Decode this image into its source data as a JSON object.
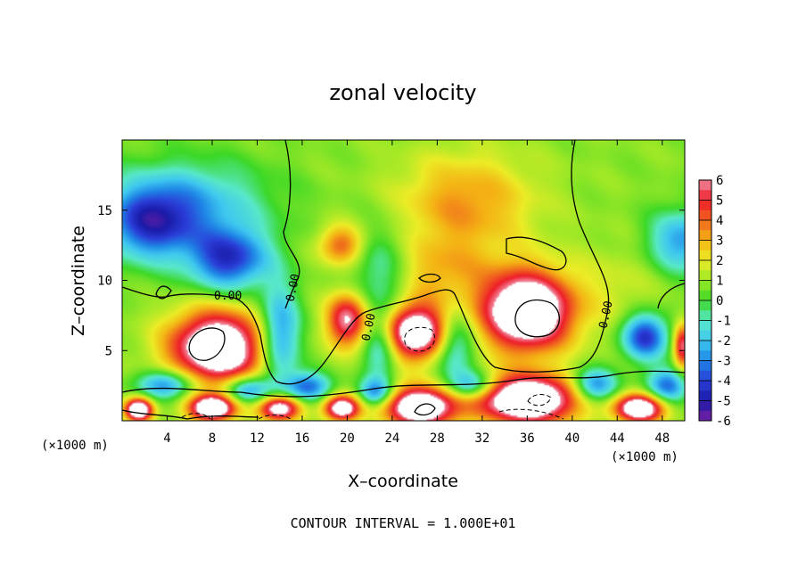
{
  "chart_data": {
    "type": "heatmap",
    "title": "zonal velocity",
    "xlabel": "X–coordinate",
    "ylabel": "Z–coordinate",
    "x_unit": "(×1000 m)",
    "xlim": [
      0,
      50
    ],
    "ylim": [
      0,
      20
    ],
    "x_ticks": [
      4,
      8,
      12,
      16,
      20,
      24,
      28,
      32,
      36,
      40,
      44,
      48
    ],
    "y_ticks": [
      5,
      10,
      15
    ],
    "colorbar_ticks": [
      6,
      5,
      4,
      3,
      2,
      1,
      0,
      -1,
      -2,
      -3,
      -4,
      -5,
      -6
    ],
    "colorbar_range": [
      -6,
      6
    ],
    "colormap": [
      "#7a1fa2",
      "#1a1aa8",
      "#2a3ed8",
      "#1f86e6",
      "#3ec8f0",
      "#58e8c8",
      "#3cd826",
      "#9ce826",
      "#ecec26",
      "#f4b414",
      "#f0641e",
      "#ee1c2a",
      "#f08ca0",
      "#ffffff"
    ],
    "contour_label": "0.00",
    "contour_interval_text": "CONTOUR INTERVAL = 1.000E+01",
    "features": [
      {
        "x": 8.5,
        "z": 5.2,
        "value": 8.0,
        "rx": 4.2,
        "rz": 2.6
      },
      {
        "x": 20.0,
        "z": 7.2,
        "value": 5.5,
        "rx": 1.8,
        "rz": 1.9
      },
      {
        "x": 19.5,
        "z": 12.5,
        "value": 3.4,
        "rx": 2.0,
        "rz": 1.4
      },
      {
        "x": 26.0,
        "z": 6.3,
        "value": 7.5,
        "rx": 3.2,
        "rz": 2.0
      },
      {
        "x": 36.0,
        "z": 7.8,
        "value": 8.5,
        "rx": 4.0,
        "rz": 2.8
      },
      {
        "x": 30.5,
        "z": 15.5,
        "value": 2.6,
        "rx": 6.0,
        "rz": 3.5
      },
      {
        "x": 28.0,
        "z": 10.5,
        "value": 2.0,
        "rx": 5.0,
        "rz": 2.5
      },
      {
        "x": 49.8,
        "z": 5.3,
        "value": 5.0,
        "rx": 0.8,
        "rz": 1.6
      },
      {
        "x": 23.0,
        "z": 10.5,
        "value": -2.2,
        "rx": 2.8,
        "rz": 3.4
      },
      {
        "x": 2.5,
        "z": 14.0,
        "value": -4.2,
        "rx": 4.0,
        "rz": 2.6
      },
      {
        "x": 9.5,
        "z": 11.5,
        "value": -5.0,
        "rx": 3.5,
        "rz": 2.2
      },
      {
        "x": 6.0,
        "z": 15.5,
        "value": -2.8,
        "rx": 7.0,
        "rz": 3.0
      },
      {
        "x": 14.0,
        "z": 6.0,
        "value": -4.2,
        "rx": 1.8,
        "rz": 3.5
      },
      {
        "x": 23.0,
        "z": 5.5,
        "value": -3.5,
        "rx": 1.6,
        "rz": 2.5
      },
      {
        "x": 29.5,
        "z": 5.5,
        "value": -3.5,
        "rx": 1.8,
        "rz": 2.5
      },
      {
        "x": 46.5,
        "z": 6.0,
        "value": -5.2,
        "rx": 2.0,
        "rz": 1.6
      },
      {
        "x": 49.8,
        "z": 12.8,
        "value": -3.5,
        "rx": 3.0,
        "rz": 2.2
      },
      {
        "x": 44.0,
        "z": 9.5,
        "value": 0.8,
        "rx": 4.0,
        "rz": 3.0
      },
      {
        "x": 1.5,
        "z": 0.8,
        "value": 8.0,
        "rx": 1.2,
        "rz": 0.8
      },
      {
        "x": 8.0,
        "z": 0.9,
        "value": 8.0,
        "rx": 2.0,
        "rz": 0.9
      },
      {
        "x": 14.0,
        "z": 0.9,
        "value": 7.0,
        "rx": 1.8,
        "rz": 0.9
      },
      {
        "x": 19.5,
        "z": 0.9,
        "value": 7.0,
        "rx": 1.6,
        "rz": 0.9
      },
      {
        "x": 26.5,
        "z": 1.0,
        "value": 8.0,
        "rx": 3.2,
        "rz": 1.4
      },
      {
        "x": 36.0,
        "z": 1.5,
        "value": 8.5,
        "rx": 4.5,
        "rz": 1.7
      },
      {
        "x": 46.0,
        "z": 0.9,
        "value": 7.5,
        "rx": 2.2,
        "rz": 1.0
      },
      {
        "x": 4.0,
        "z": 2.6,
        "value": -4.2,
        "rx": 2.5,
        "rz": 1.0
      },
      {
        "x": 11.0,
        "z": 2.2,
        "value": -4.2,
        "rx": 2.0,
        "rz": 1.0
      },
      {
        "x": 16.5,
        "z": 2.4,
        "value": -4.2,
        "rx": 2.0,
        "rz": 1.0
      },
      {
        "x": 22.5,
        "z": 2.0,
        "value": -3.8,
        "rx": 1.5,
        "rz": 1.0
      },
      {
        "x": 31.0,
        "z": 2.5,
        "value": -3.8,
        "rx": 2.0,
        "rz": 1.0
      },
      {
        "x": 42.0,
        "z": 2.5,
        "value": -4.2,
        "rx": 2.0,
        "rz": 1.2
      },
      {
        "x": 48.5,
        "z": 2.5,
        "value": -4.2,
        "rx": 1.8,
        "rz": 1.2
      }
    ]
  }
}
